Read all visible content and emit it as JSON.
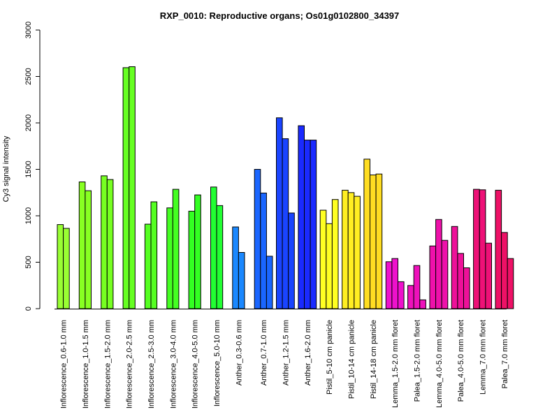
{
  "chart_data": {
    "type": "bar",
    "title": "RXP_0010: Reproductive organs; Os01g0102800_34397",
    "xlabel": "",
    "ylabel": "Cy3 signal intensity",
    "ylim": [
      0,
      3000
    ],
    "yticks": [
      0,
      500,
      1000,
      1500,
      2000,
      2500,
      3000
    ],
    "grid": false,
    "legend": "none",
    "groups": [
      {
        "label": "Inflorescence_0.6-1.0 mm",
        "color": "#99ff33",
        "values": [
          905,
          865
        ]
      },
      {
        "label": "Inflorescence_1.0-1.5 mm",
        "color": "#88ff22",
        "values": [
          1365,
          1270
        ]
      },
      {
        "label": "Inflorescence_1.5-2.0 mm",
        "color": "#77ff22",
        "values": [
          1430,
          1390
        ]
      },
      {
        "label": "Inflorescence_2.0-2.5 mm",
        "color": "#66ff22",
        "values": [
          2595,
          2605
        ]
      },
      {
        "label": "Inflorescence_2.5-3.0 mm",
        "color": "#55ff22",
        "values": [
          910,
          1150
        ]
      },
      {
        "label": "Inflorescence_3.0-4.0 mm",
        "color": "#44ff22",
        "values": [
          1085,
          1285
        ]
      },
      {
        "label": "Inflorescence_4.0-5.0 mm",
        "color": "#33ff22",
        "values": [
          1050,
          1225
        ]
      },
      {
        "label": "Inflorescence_5.0-10 mm",
        "color": "#22ff33",
        "values": [
          1310,
          1110
        ]
      },
      {
        "label": "Anther_0.3-0.6 mm",
        "color": "#1a88ff",
        "values": [
          880,
          605
        ]
      },
      {
        "label": "Anther_0.7-1.0 mm",
        "color": "#1a66ff",
        "values": [
          1500,
          1245,
          565
        ]
      },
      {
        "label": "Anther_1.2-1.5 mm",
        "color": "#1a44ff",
        "values": [
          2055,
          1830,
          1030
        ]
      },
      {
        "label": "Anther_1.6-2.0 mm",
        "color": "#1a2aff",
        "values": [
          1970,
          1815,
          1815
        ]
      },
      {
        "label": "Pistil_5-10 cm panicle",
        "color": "#ffff22",
        "values": [
          1060,
          915,
          1175
        ]
      },
      {
        "label": "Pistil_10-14 cm panicle",
        "color": "#ffee22",
        "values": [
          1275,
          1250,
          1210
        ]
      },
      {
        "label": "Pistil_14-18 cm panicle",
        "color": "#ffdd22",
        "values": [
          1610,
          1440,
          1450
        ]
      },
      {
        "label": "Lemma_1.5-2.0 mm floret",
        "color": "#ee11cc",
        "values": [
          505,
          540,
          290
        ]
      },
      {
        "label": "Palea_1.5-2.0 mm floret",
        "color": "#ee11bb",
        "values": [
          250,
          465,
          95
        ]
      },
      {
        "label": "Lemma_4.0-5.0 mm floret",
        "color": "#ee11aa",
        "values": [
          675,
          960,
          735
        ]
      },
      {
        "label": "Palea_4.0-5.0 mm floret",
        "color": "#ee1199",
        "values": [
          885,
          595,
          440
        ]
      },
      {
        "label": "Lemma_7.0 mm floret",
        "color": "#ee1177",
        "values": [
          1285,
          1280,
          705
        ]
      },
      {
        "label": "Palea_7.0 mm floret",
        "color": "#ee1166",
        "values": [
          1275,
          820,
          540
        ]
      }
    ]
  }
}
